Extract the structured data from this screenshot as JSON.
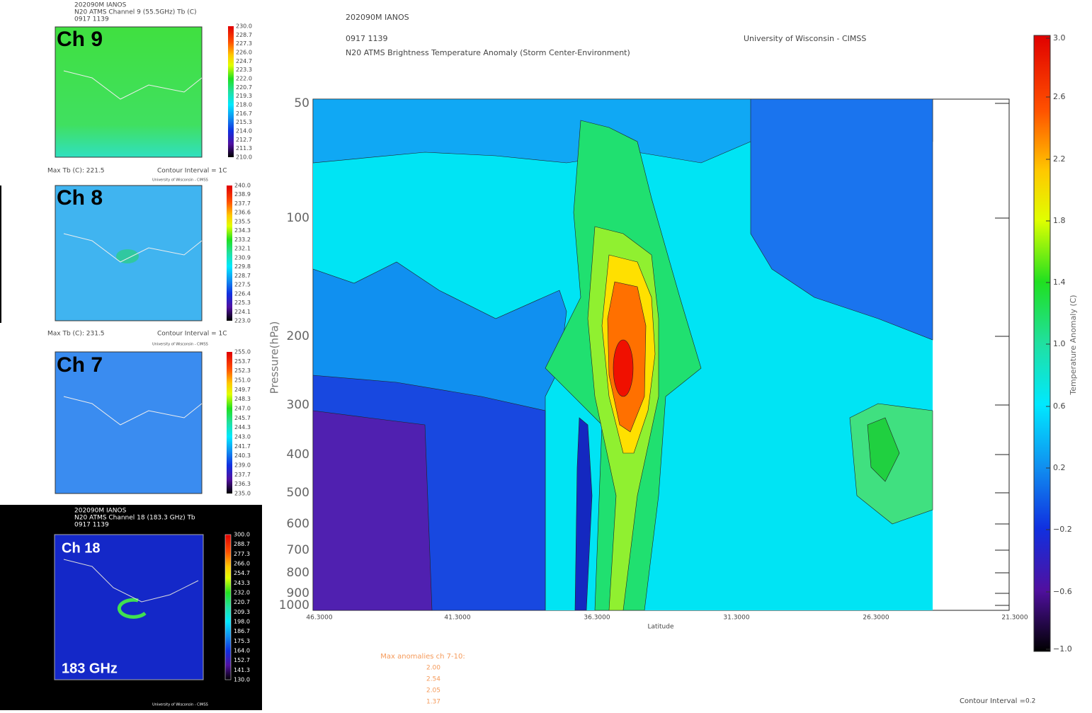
{
  "main": {
    "header": {
      "id": "202090M IANOS",
      "time": "0917 1139",
      "title": "N20 ATMS Brightness Temperature Anomaly (Storm Center-Environment)",
      "credit": "University of Wisconsin - CIMSS"
    },
    "y_axis_label": "Pressure(hPa)",
    "y_ticks": [
      "50",
      "100",
      "200",
      "300",
      "400",
      "500",
      "600",
      "700",
      "800",
      "900",
      "1000"
    ],
    "x_axis_label": "Latitude",
    "x_ticks": [
      "46.3000",
      "41.3000",
      "36.3000",
      "31.3000",
      "26.3000",
      "21.3000"
    ],
    "colorbar_label": "Temperature Anomaly (C)",
    "colorbar_ticks": [
      "3.0",
      "2.6",
      "2.2",
      "1.8",
      "1.4",
      "1.0",
      "0.6",
      "0.2",
      "−0.2",
      "−0.6",
      "−1.0"
    ],
    "max_anomalies": {
      "title": "Max anomalies ch 7-10:",
      "values": [
        "2.00",
        "2.54",
        "2.05",
        "1.37"
      ]
    },
    "contour_interval": {
      "label": "Contour Interval =",
      "value": "0.2"
    }
  },
  "panels": [
    {
      "label": "Ch 9",
      "header": [
        "202090M IANOS",
        "N20 ATMS Channel 9 (55.5GHz) Tb (C)",
        "0917 1139"
      ],
      "colorbar_ticks": [
        "230.0",
        "228.7",
        "227.3",
        "226.0",
        "224.7",
        "223.3",
        "222.0",
        "220.7",
        "219.3",
        "218.0",
        "216.7",
        "215.3",
        "214.0",
        "212.7",
        "211.3",
        "210.0"
      ],
      "footer": {
        "max": "Max Tb (C): 221.5",
        "interval": "Contour Interval = 1C",
        "credit": "University of Wisconsin - CIMSS"
      }
    },
    {
      "label": "Ch 8",
      "colorbar_ticks": [
        "240.0",
        "238.9",
        "237.7",
        "236.6",
        "235.5",
        "234.3",
        "233.2",
        "232.1",
        "230.9",
        "229.8",
        "228.7",
        "227.5",
        "226.4",
        "225.3",
        "224.1",
        "223.0"
      ],
      "footer": {
        "max": "Max Tb (C): 231.5",
        "interval": "Contour Interval = 1C",
        "credit": "University of Wisconsin - CIMSS"
      }
    },
    {
      "label": "Ch 7",
      "colorbar_ticks": [
        "255.0",
        "253.7",
        "252.3",
        "251.0",
        "249.7",
        "248.3",
        "247.0",
        "245.7",
        "244.3",
        "243.0",
        "241.7",
        "240.3",
        "239.0",
        "237.7",
        "236.3",
        "235.0"
      ]
    },
    {
      "label": "Ch 18",
      "sublabel": "183 GHz",
      "header": [
        "202090M IANOS",
        "N20  ATMS Channel 18 (183.3 GHz) Tb",
        "0917 1139"
      ],
      "colorbar_ticks": [
        "300.0",
        "288.7",
        "277.3",
        "266.0",
        "254.7",
        "243.3",
        "232.0",
        "220.7",
        "209.3",
        "198.0",
        "186.7",
        "175.3",
        "164.0",
        "152.7",
        "141.3",
        "130.0"
      ],
      "footer": {
        "credit": "University of Wisconsin - CIMSS"
      }
    }
  ]
}
